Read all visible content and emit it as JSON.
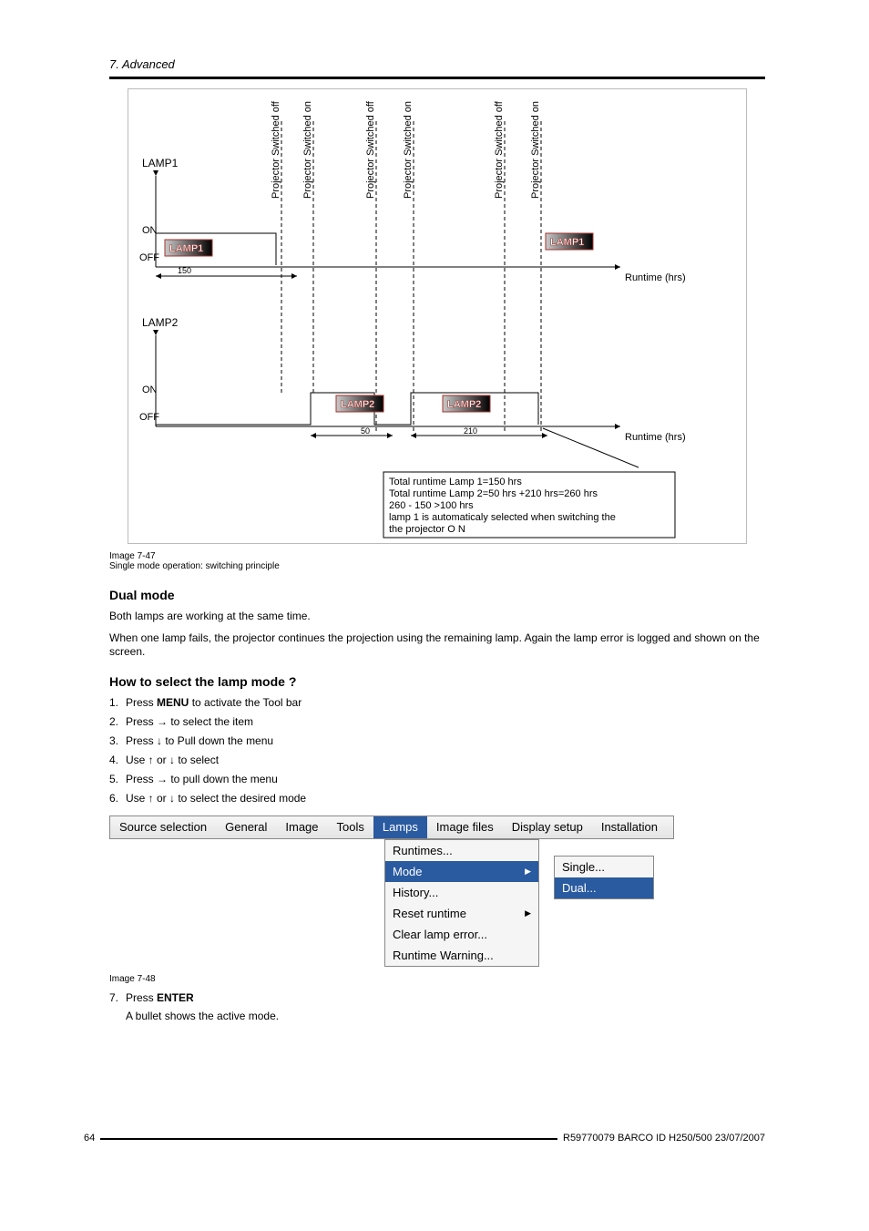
{
  "header": {
    "title": "7.  Advanced"
  },
  "diagram": {
    "lamp1_label": "LAMP1",
    "lamp2_label": "LAMP2",
    "on": "ON",
    "off": "OFF",
    "runtime_label": "Runtime (hrs)",
    "v_labels": [
      "Projector Switched off",
      "Projector Switched on",
      "Projector Switched off",
      "Projector Switched on",
      "Projector Switched off",
      "Projector Switched on"
    ],
    "v_x": [
      165,
      200,
      269,
      310,
      410,
      450
    ],
    "lamp_marker_1": "LAMP1",
    "lamp_marker_2": "LAMP2",
    "lamp1_tick": "150",
    "lamp2_tick1": "50",
    "lamp2_tick2": "210",
    "info_lines": [
      "Total runtime Lamp 1=150 hrs",
      "Total runtime Lamp 2=50 hrs +210 hrs=260 hrs",
      "260 - 150 >100 hrs",
      "lamp 1 is automaticaly selected when switching the",
      "the projector O N"
    ],
    "colors": {
      "axis": "#000000",
      "lamp_fill_start": "#ffffff",
      "lamp_fill_end": "#000000",
      "lamp_text": "#ffffff",
      "lamp_stroke": "#a0332d",
      "dash": "#000000",
      "box_border": "#000000"
    }
  },
  "caption1": {
    "num": "Image 7-47",
    "text": "Single mode operation:  switching principle"
  },
  "dualmode": {
    "heading": "Dual mode",
    "p1": "Both lamps are working at the same time.",
    "p2": "When one lamp fails, the projector continues the projection using the remaining lamp.  Again the lamp error is logged and shown on the screen."
  },
  "howto": {
    "heading": "How to select the lamp mode ?",
    "steps": [
      [
        "Press ",
        "MENU",
        " to activate the Tool bar"
      ],
      [
        "Press → to select the          item",
        "",
        ""
      ],
      [
        "Press ↓ to Pull down the          menu",
        "",
        ""
      ],
      [
        "Use ↑ or ↓ to select",
        "",
        ""
      ],
      [
        "Press → to pull down the menu",
        "",
        ""
      ],
      [
        "Use ↑ or ↓ to select the desired mode",
        "",
        ""
      ]
    ]
  },
  "menushot": {
    "menubar": [
      "Source selection",
      "General",
      "Image",
      "Tools",
      "Lamps",
      "Image files",
      "Display setup",
      "Installation"
    ],
    "active_index": 4,
    "dropdown1": [
      {
        "label": "Runtimes...",
        "arrow": false,
        "sel": false
      },
      {
        "label": "Mode",
        "arrow": true,
        "sel": true
      },
      {
        "label": "History...",
        "arrow": false,
        "sel": false
      },
      {
        "label": "Reset runtime",
        "arrow": true,
        "sel": false
      },
      {
        "label": "Clear lamp error...",
        "arrow": false,
        "sel": false
      },
      {
        "label": "Runtime Warning...",
        "arrow": false,
        "sel": false
      }
    ],
    "dropdown2": [
      {
        "label": "Single...",
        "sel": false
      },
      {
        "label": "Dual...",
        "sel": true
      }
    ]
  },
  "caption2": {
    "num": "Image 7-48"
  },
  "step7": {
    "num": "7.",
    "text_a": "Press ",
    "text_b": "ENTER",
    "sub": "A bullet shows the active mode."
  },
  "footer": {
    "page": "64",
    "right": "R59770079  BARCO ID H250/500  23/07/2007"
  }
}
